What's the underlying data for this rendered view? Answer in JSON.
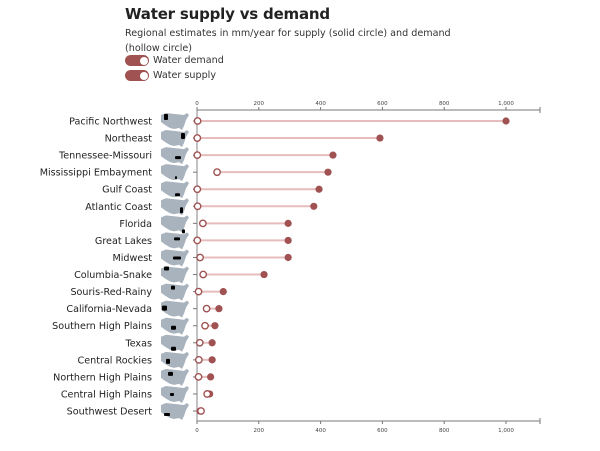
{
  "title": "Water supply vs demand",
  "subtitle": "Regional estimates in mm/year for supply (solid circle) and demand (hollow circle)",
  "legend": [
    {
      "label": "Water demand",
      "enabled": true,
      "marker": "hollow circle"
    },
    {
      "label": "Water supply",
      "enabled": true,
      "marker": "solid circle"
    }
  ],
  "colors": {
    "accent": "#a05252",
    "line": "#e6bcbc",
    "map": "#a9b3bd",
    "axis": "#777777"
  },
  "chart_data": {
    "type": "dumbbell",
    "title": "Water supply vs demand",
    "xlabel": "",
    "ylabel": "",
    "xlim": [
      0,
      1100
    ],
    "xticks": [
      0,
      200,
      400,
      600,
      800,
      1000
    ],
    "xtick_labels": [
      "0",
      "200",
      "400",
      "600",
      "800",
      "1,000"
    ],
    "axes": [
      "top",
      "bottom"
    ],
    "grid": false,
    "legend_position": "top-left",
    "categories": [
      "Pacific Northwest",
      "Northeast",
      "Tennessee-Missouri",
      "Mississippi Embayment",
      "Gulf Coast",
      "Atlantic Coast",
      "Florida",
      "Great Lakes",
      "Midwest",
      "Columbia-Snake",
      "Souris-Red-Rainy",
      "California-Nevada",
      "Southern High Plains",
      "Texas",
      "Central Rockies",
      "Northern High Plains",
      "Central High Plains",
      "Southwest Desert"
    ],
    "series": [
      {
        "name": "Water demand",
        "values": [
          2,
          1,
          1,
          65,
          1,
          2,
          19,
          1,
          10,
          20,
          5,
          31,
          26,
          9,
          6,
          5,
          33,
          13
        ]
      },
      {
        "name": "Water supply",
        "values": [
          1000,
          592,
          440,
          424,
          395,
          378,
          295,
          295,
          295,
          217,
          85,
          71,
          58,
          49,
          49,
          44,
          41,
          10
        ]
      }
    ]
  }
}
